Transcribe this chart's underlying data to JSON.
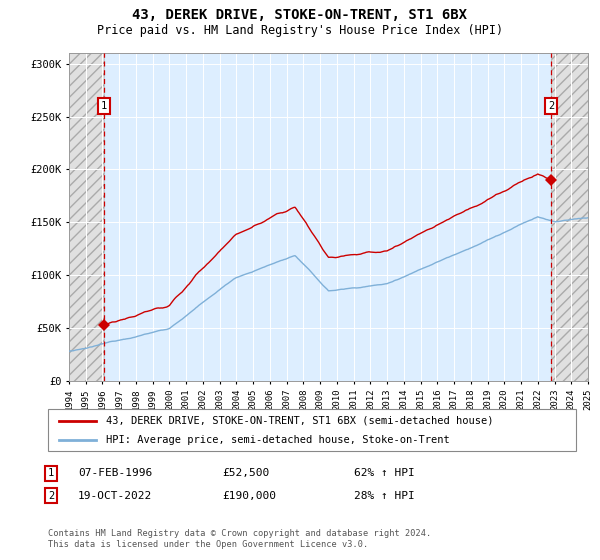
{
  "title": "43, DEREK DRIVE, STOKE-ON-TRENT, ST1 6BX",
  "subtitle": "Price paid vs. HM Land Registry's House Price Index (HPI)",
  "legend_line1": "43, DEREK DRIVE, STOKE-ON-TRENT, ST1 6BX (semi-detached house)",
  "legend_line2": "HPI: Average price, semi-detached house, Stoke-on-Trent",
  "sale1_date": "07-FEB-1996",
  "sale1_price": "£52,500",
  "sale1_hpi": "62% ↑ HPI",
  "sale1_year": 1996.1,
  "sale1_value": 52500,
  "sale2_date": "19-OCT-2022",
  "sale2_price": "£190,000",
  "sale2_hpi": "28% ↑ HPI",
  "sale2_year": 2022.8,
  "sale2_value": 190000,
  "footer": "Contains HM Land Registry data © Crown copyright and database right 2024.\nThis data is licensed under the Open Government Licence v3.0.",
  "ylim": [
    0,
    310000
  ],
  "xlim_start": 1994,
  "xlim_end": 2025,
  "red_color": "#cc0000",
  "blue_color": "#7fb0d8",
  "bg_plot": "#ddeeff",
  "bg_hatch": "#e0e0e0"
}
